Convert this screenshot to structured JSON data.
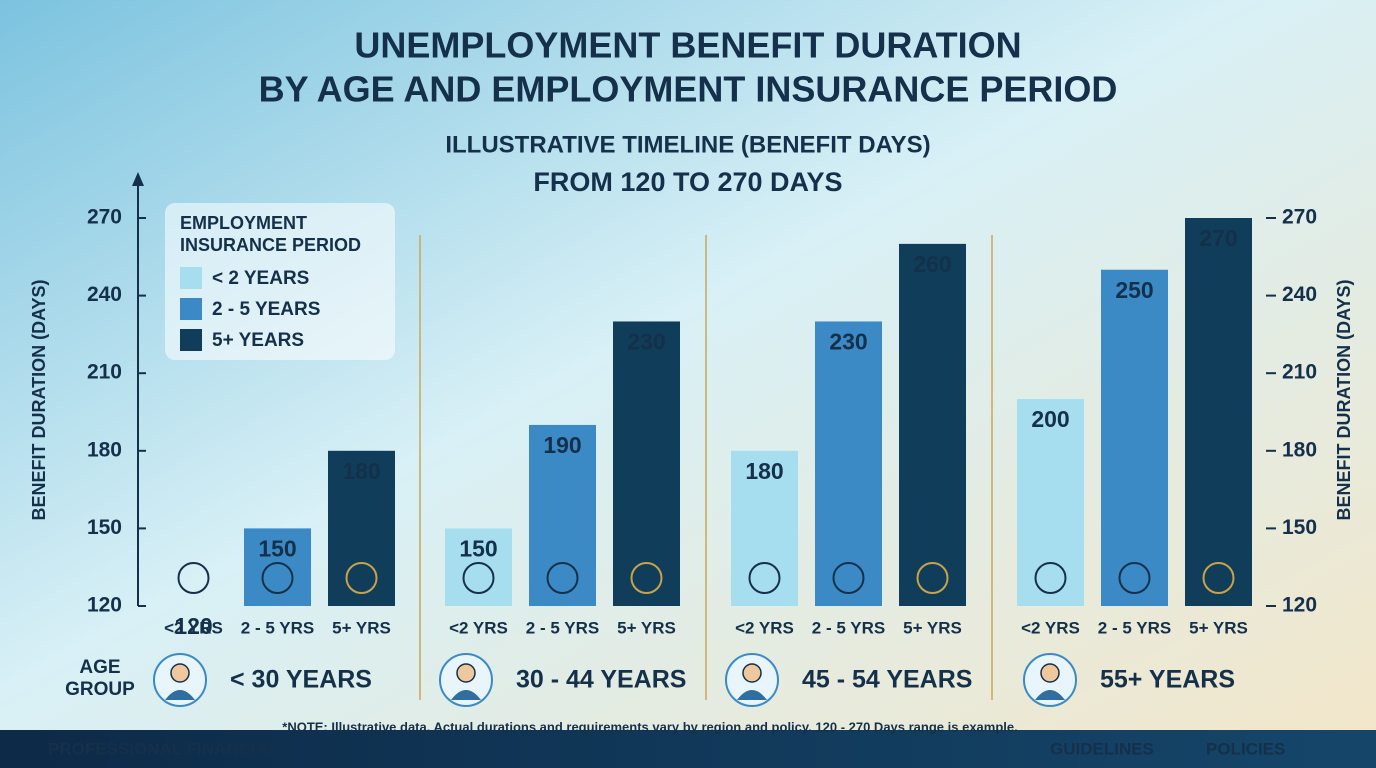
{
  "chart_data": {
    "type": "bar",
    "title": [
      "UNEMPLOYMENT BENEFIT DURATION",
      "BY AGE AND EMPLOYMENT INSURANCE PERIOD"
    ],
    "subtitle": [
      "ILLUSTRATIVE TIMELINE (BENEFIT DAYS)",
      "FROM 120 TO 270 DAYS"
    ],
    "y_axis_label": "BENEFIT DURATION (DAYS)",
    "y2_axis_label": "BENEFIT DURATION (DAYS)",
    "x_axis_label": [
      "AGE",
      "GROUP"
    ],
    "legend_title": [
      "EMPLOYMENT",
      "INSURANCE PERIOD"
    ],
    "categories": [
      "< 30 YEARS",
      "30 - 44 YEARS",
      "45 - 54 YEARS",
      "55+ YEARS"
    ],
    "bar_labels": [
      "<2 YRS",
      "2 - 5 YRS",
      "5+ YRS"
    ],
    "series": [
      {
        "name": "< 2 YEARS",
        "color": "#a6def0",
        "values": [
          120,
          150,
          180,
          200
        ]
      },
      {
        "name": "2 - 5 YEARS",
        "color": "#3b8ac6",
        "values": [
          150,
          190,
          230,
          250
        ]
      },
      {
        "name": "5+ YEARS",
        "color": "#0f3d5a",
        "values": [
          180,
          230,
          260,
          270
        ]
      }
    ],
    "ylim": [
      120,
      270
    ],
    "yticks": [
      120,
      150,
      180,
      210,
      240,
      270
    ],
    "note": "*NOTE: Illustrative data. Actual durations and requirements vary by region and policy. 120 - 270 Days range is example.",
    "footer": {
      "brand": "PROFESSIONAL FINANCIAL",
      "links": [
        "GUIDELINES",
        "POLICIES"
      ]
    }
  }
}
